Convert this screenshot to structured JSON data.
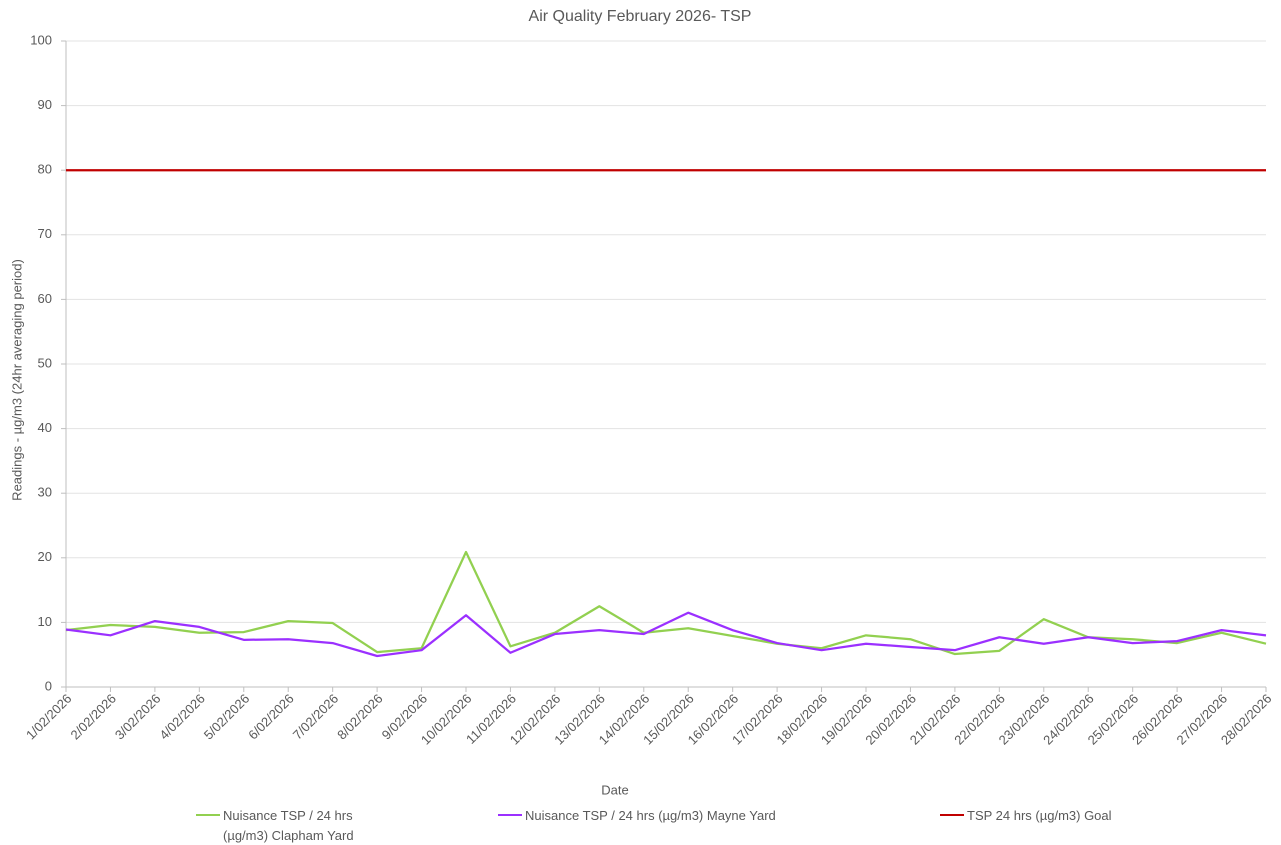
{
  "chart_data": {
    "type": "line",
    "title": "Air Quality February 2026- TSP",
    "x_label": "Date",
    "y_label": "Readings - µg/m3 (24hr averaging period)",
    "categories": [
      "1/02/2026",
      "2/02/2026",
      "3/02/2026",
      "4/02/2026",
      "5/02/2026",
      "6/02/2026",
      "7/02/2026",
      "8/02/2026",
      "9/02/2026",
      "10/02/2026",
      "11/02/2026",
      "12/02/2026",
      "13/02/2026",
      "14/02/2026",
      "15/02/2026",
      "16/02/2026",
      "17/02/2026",
      "18/02/2026",
      "19/02/2026",
      "20/02/2026",
      "21/02/2026",
      "22/02/2026",
      "23/02/2026",
      "24/02/2026",
      "25/02/2026",
      "26/02/2026",
      "27/02/2026",
      "28/02/2026"
    ],
    "series": [
      {
        "name": "Nuisance TSP / 24 hrs (µg/m3) Clapham Yard",
        "color": "#92d050",
        "values": [
          8.8,
          9.6,
          9.3,
          8.4,
          8.5,
          10.2,
          9.9,
          5.4,
          6.0,
          20.9,
          6.3,
          8.4,
          12.5,
          8.4,
          9.1,
          7.9,
          6.7,
          6.0,
          8.0,
          7.4,
          5.1,
          5.6,
          10.5,
          7.7,
          7.4,
          6.8,
          8.4,
          6.7
        ]
      },
      {
        "name": "Nuisance TSP / 24 hrs (µg/m3) Mayne Yard",
        "color": "#9b30ff",
        "values": [
          8.9,
          8.0,
          10.2,
          9.3,
          7.3,
          7.4,
          6.8,
          4.8,
          5.7,
          11.1,
          5.3,
          8.2,
          8.8,
          8.2,
          11.5,
          8.8,
          6.8,
          5.7,
          6.7,
          6.2,
          5.7,
          7.7,
          6.7,
          7.7,
          6.8,
          7.1,
          8.8,
          8.0
        ]
      },
      {
        "name": "TSP 24 hrs (µg/m3) Goal",
        "color": "#c00000",
        "values": [
          80,
          80,
          80,
          80,
          80,
          80,
          80,
          80,
          80,
          80,
          80,
          80,
          80,
          80,
          80,
          80,
          80,
          80,
          80,
          80,
          80,
          80,
          80,
          80,
          80,
          80,
          80,
          80
        ]
      }
    ],
    "ylim": [
      0,
      100
    ],
    "yticks": [
      0,
      10,
      20,
      30,
      40,
      50,
      60,
      70,
      80,
      90,
      100
    ],
    "grid": true
  }
}
